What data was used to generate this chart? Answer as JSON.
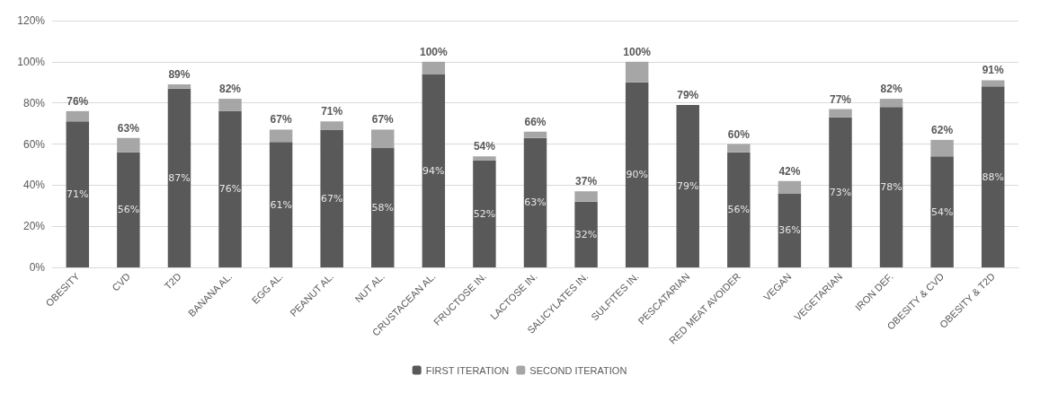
{
  "chart_data": {
    "type": "bar",
    "stacked": true,
    "categories": [
      "OBESITY",
      "CVD",
      "T2D",
      "BANANA AL.",
      "EGG AL.",
      "PEANUT AL.",
      "NUT AL.",
      "CRUSTACEAN AL.",
      "FRUCTOSE IN.",
      "LACTOSE IN.",
      "SALICYLATES IN.",
      "SULFITES IN.",
      "PESCATARIAN",
      "RED MEAT AVOIDER",
      "VEGAN",
      "VEGETARIAN",
      "IRON DEF.",
      "OBESITY & CVD",
      "OBESITY & T2D"
    ],
    "series": [
      {
        "name": "FIRST ITERATION",
        "color": "#595959",
        "values": [
          71,
          56,
          87,
          76,
          61,
          67,
          58,
          94,
          52,
          63,
          32,
          90,
          79,
          56,
          36,
          73,
          78,
          54,
          88
        ],
        "value_labels": [
          "71%",
          "56%",
          "87%",
          "76%",
          "61%",
          "67%",
          "58%",
          "94%",
          "52%",
          "63%",
          "32%",
          "90%",
          "79%",
          "56%",
          "36%",
          "73%",
          "78%",
          "54%",
          "88%"
        ]
      },
      {
        "name": "SECOND ITERATION",
        "color": "#a6a6a6",
        "values": [
          5,
          7,
          2,
          6,
          6,
          4,
          9,
          6,
          2,
          3,
          5,
          10,
          0,
          4,
          6,
          4,
          4,
          8,
          3
        ]
      }
    ],
    "totals": [
      "76%",
      "63%",
      "89%",
      "82%",
      "67%",
      "71%",
      "67%",
      "100%",
      "54%",
      "66%",
      "37%",
      "100%",
      "79%",
      "60%",
      "42%",
      "77%",
      "82%",
      "62%",
      "91%"
    ],
    "ylim": [
      0,
      120
    ],
    "yticks": [
      {
        "value": 0,
        "label": "0%"
      },
      {
        "value": 20,
        "label": "20%"
      },
      {
        "value": 40,
        "label": "40%"
      },
      {
        "value": 60,
        "label": "60%"
      },
      {
        "value": 80,
        "label": "80%"
      },
      {
        "value": 100,
        "label": "100%"
      },
      {
        "value": 120,
        "label": "120%"
      }
    ],
    "grid": "y",
    "legend": "bottom"
  }
}
